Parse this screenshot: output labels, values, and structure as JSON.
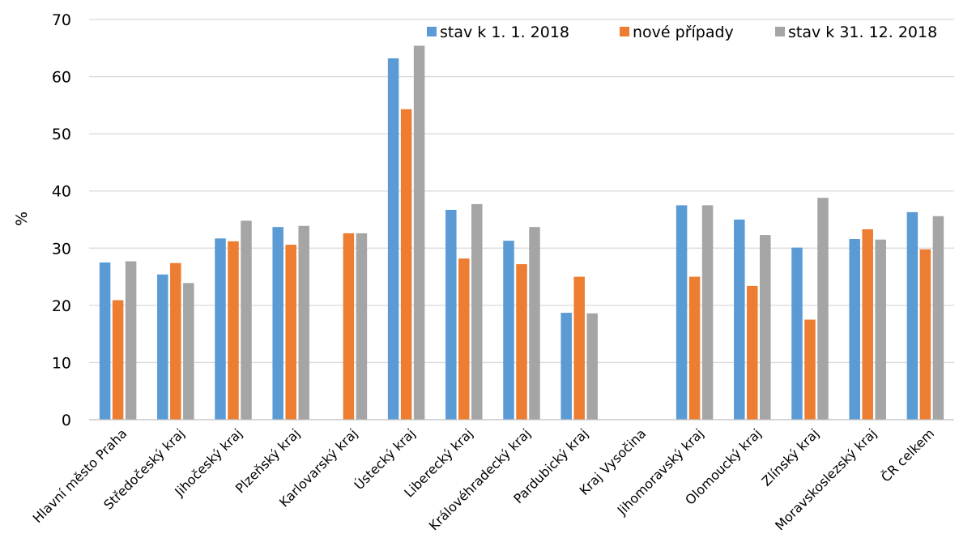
{
  "chart_data": {
    "type": "bar",
    "ylabel": "%",
    "xlabel": "",
    "ylim": [
      0,
      70
    ],
    "yticks": [
      "0",
      "10",
      "20",
      "30",
      "40",
      "50",
      "60",
      "70"
    ],
    "grid": true,
    "legend_position": "top-right",
    "categories": [
      "Hlavní město Praha",
      "Středočeský kraj",
      "Jihočeský kraj",
      "Plzeňský kraj",
      "Karlovarský kraj",
      "Ústecký kraj",
      "Liberecký kraj",
      "Královéhradecký kraj",
      "Pardubický kraj",
      "Kraj Vysočina",
      "Jihomoravský kraj",
      "Olomoucký kraj",
      "Zlínský kraj",
      "Moravskoslezský kraj",
      "ČR celkem"
    ],
    "series": [
      {
        "name": "stav k 1. 1. 2018",
        "color": "#5b9bd5",
        "values": [
          27.5,
          25.4,
          31.7,
          33.7,
          null,
          63.2,
          36.7,
          31.3,
          18.7,
          null,
          37.5,
          35.0,
          30.1,
          31.6,
          36.3
        ]
      },
      {
        "name": "nové případy",
        "color": "#ed7d31",
        "values": [
          20.9,
          27.4,
          31.2,
          30.6,
          32.6,
          54.3,
          28.2,
          27.2,
          25.0,
          null,
          25.0,
          23.4,
          17.5,
          33.3,
          29.8
        ]
      },
      {
        "name": "stav k 31. 12. 2018",
        "color": "#a5a5a5",
        "values": [
          27.7,
          23.9,
          34.8,
          33.9,
          32.6,
          65.4,
          37.7,
          33.7,
          18.6,
          null,
          37.5,
          32.3,
          38.8,
          31.5,
          35.6
        ]
      }
    ]
  }
}
